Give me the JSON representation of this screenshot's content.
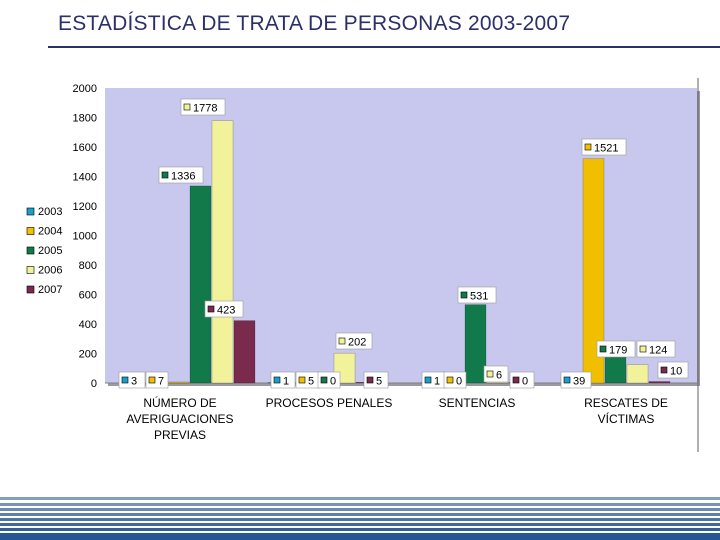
{
  "header": {
    "title": "ESTADÍSTICA DE TRATA DE PERSONAS 2003-2007"
  },
  "colors": {
    "title": "#2b2f6a",
    "plot_background": "#c8c8ee",
    "footer_blue": "#1f4f8f"
  },
  "chart_data": {
    "type": "bar",
    "title": "",
    "xlabel": "",
    "ylabel": "",
    "ylim": [
      0,
      2000
    ],
    "yticks": [
      0,
      200,
      400,
      600,
      800,
      1000,
      1200,
      1400,
      1600,
      1800,
      2000
    ],
    "grid": false,
    "legend_position": "left",
    "categories": [
      [
        "NÚMERO DE",
        "AVERIGUACIONES",
        "PREVIAS"
      ],
      [
        "PROCESOS PENALES"
      ],
      [
        "SENTENCIAS"
      ],
      [
        "RESCATES DE",
        "VÍCTIMAS"
      ]
    ],
    "series": [
      {
        "name": "2003",
        "color": "#1aa0c8",
        "values": [
          3,
          1,
          1,
          39
        ],
        "labels": [
          "3",
          "1",
          "1",
          "39"
        ]
      },
      {
        "name": "2004",
        "color": "#f0c000",
        "values": [
          7,
          5,
          0,
          1521
        ],
        "labels": [
          "7",
          "5",
          "0",
          "1521"
        ]
      },
      {
        "name": "2005",
        "color": "#127a4a",
        "values": [
          1336,
          0,
          531,
          179
        ],
        "labels": [
          "1336",
          "0",
          "531",
          "179"
        ]
      },
      {
        "name": "2006",
        "color": "#f2f29a",
        "values": [
          1778,
          202,
          6,
          124
        ],
        "labels": [
          "1778",
          "202",
          "6",
          "124"
        ]
      },
      {
        "name": "2007",
        "color": "#7a2a4c",
        "values": [
          423,
          5,
          0,
          10
        ],
        "labels": [
          "423",
          "5",
          "0",
          "10"
        ]
      }
    ]
  }
}
